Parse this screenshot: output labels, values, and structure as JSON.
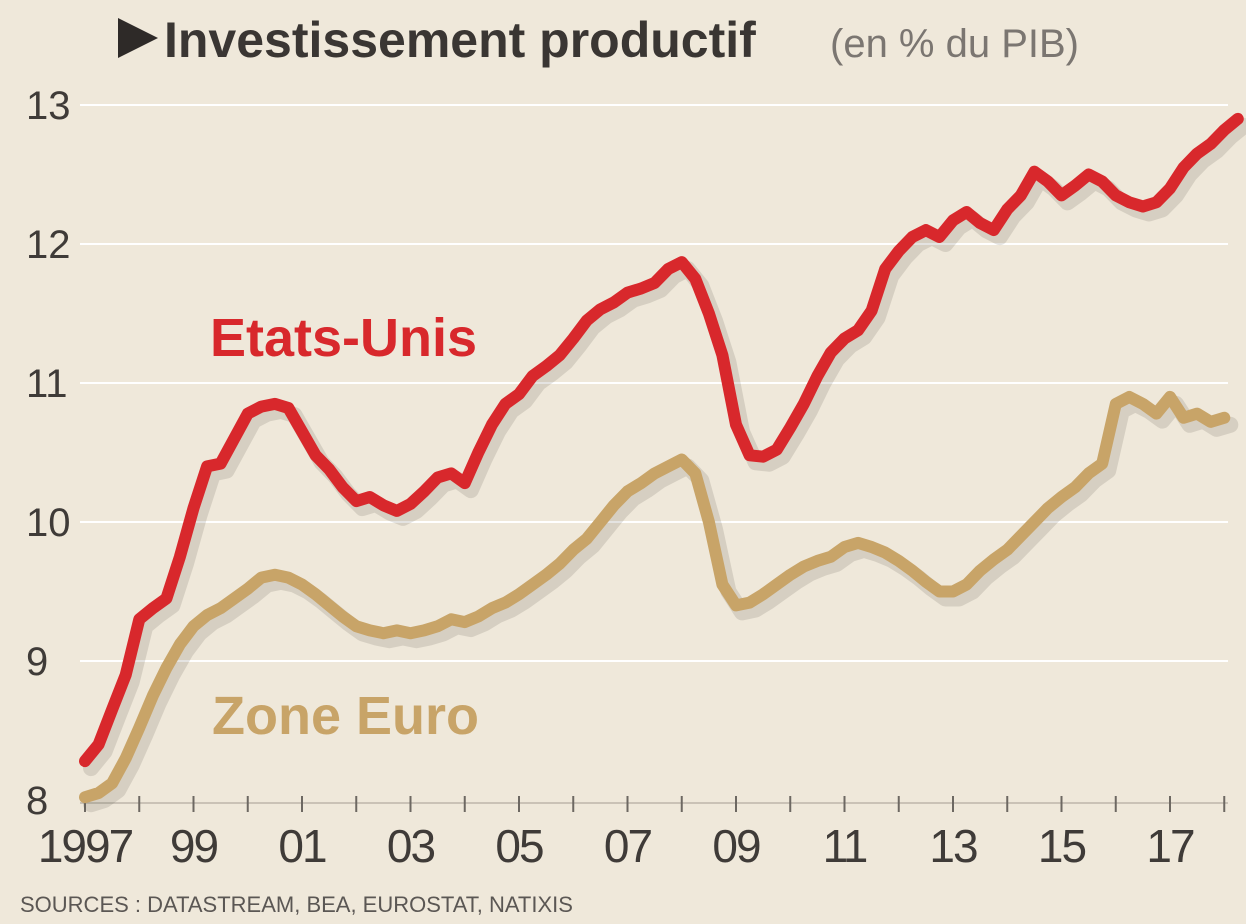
{
  "chart_data": {
    "type": "line",
    "title": "Investissement productif",
    "subtitle": "(en % du PIB)",
    "source": "SOURCES : DATASTREAM, BEA, EUROSTAT, NATIXIS",
    "xlim": [
      1997,
      2018.3
    ],
    "ylim": [
      8,
      13
    ],
    "yticks": [
      8,
      9,
      10,
      11,
      12,
      13
    ],
    "xticks": [
      {
        "value": 1997,
        "label": "1997"
      },
      {
        "value": 1999,
        "label": "99"
      },
      {
        "value": 2001,
        "label": "01"
      },
      {
        "value": 2003,
        "label": "03"
      },
      {
        "value": 2005,
        "label": "05"
      },
      {
        "value": 2007,
        "label": "07"
      },
      {
        "value": 2009,
        "label": "09"
      },
      {
        "value": 2011,
        "label": "11"
      },
      {
        "value": 2013,
        "label": "13"
      },
      {
        "value": 2015,
        "label": "15"
      },
      {
        "value": 2017,
        "label": "17"
      }
    ],
    "grid": true,
    "series": [
      {
        "name": "Etats-Unis",
        "color": "#d8282c",
        "points": [
          [
            1997.0,
            8.28
          ],
          [
            1997.25,
            8.4
          ],
          [
            1997.5,
            8.65
          ],
          [
            1997.75,
            8.9
          ],
          [
            1998.0,
            9.3
          ],
          [
            1998.25,
            9.38
          ],
          [
            1998.5,
            9.45
          ],
          [
            1998.75,
            9.75
          ],
          [
            1999.0,
            10.1
          ],
          [
            1999.25,
            10.4
          ],
          [
            1999.5,
            10.42
          ],
          [
            1999.75,
            10.6
          ],
          [
            2000.0,
            10.78
          ],
          [
            2000.25,
            10.83
          ],
          [
            2000.5,
            10.85
          ],
          [
            2000.75,
            10.82
          ],
          [
            2001.0,
            10.65
          ],
          [
            2001.25,
            10.48
          ],
          [
            2001.5,
            10.38
          ],
          [
            2001.75,
            10.25
          ],
          [
            2002.0,
            10.15
          ],
          [
            2002.25,
            10.18
          ],
          [
            2002.5,
            10.12
          ],
          [
            2002.75,
            10.08
          ],
          [
            2003.0,
            10.13
          ],
          [
            2003.25,
            10.22
          ],
          [
            2003.5,
            10.32
          ],
          [
            2003.75,
            10.35
          ],
          [
            2004.0,
            10.28
          ],
          [
            2004.25,
            10.5
          ],
          [
            2004.5,
            10.7
          ],
          [
            2004.75,
            10.85
          ],
          [
            2005.0,
            10.92
          ],
          [
            2005.25,
            11.05
          ],
          [
            2005.5,
            11.12
          ],
          [
            2005.75,
            11.2
          ],
          [
            2006.0,
            11.32
          ],
          [
            2006.25,
            11.45
          ],
          [
            2006.5,
            11.53
          ],
          [
            2006.75,
            11.58
          ],
          [
            2007.0,
            11.65
          ],
          [
            2007.25,
            11.68
          ],
          [
            2007.5,
            11.72
          ],
          [
            2007.75,
            11.82
          ],
          [
            2008.0,
            11.87
          ],
          [
            2008.25,
            11.75
          ],
          [
            2008.5,
            11.5
          ],
          [
            2008.75,
            11.2
          ],
          [
            2009.0,
            10.7
          ],
          [
            2009.25,
            10.48
          ],
          [
            2009.5,
            10.47
          ],
          [
            2009.75,
            10.52
          ],
          [
            2010.0,
            10.68
          ],
          [
            2010.25,
            10.85
          ],
          [
            2010.5,
            11.05
          ],
          [
            2010.75,
            11.22
          ],
          [
            2011.0,
            11.32
          ],
          [
            2011.25,
            11.38
          ],
          [
            2011.5,
            11.52
          ],
          [
            2011.75,
            11.82
          ],
          [
            2012.0,
            11.95
          ],
          [
            2012.25,
            12.05
          ],
          [
            2012.5,
            12.1
          ],
          [
            2012.75,
            12.05
          ],
          [
            2013.0,
            12.17
          ],
          [
            2013.25,
            12.23
          ],
          [
            2013.5,
            12.15
          ],
          [
            2013.75,
            12.1
          ],
          [
            2014.0,
            12.25
          ],
          [
            2014.25,
            12.35
          ],
          [
            2014.5,
            12.52
          ],
          [
            2014.75,
            12.45
          ],
          [
            2015.0,
            12.35
          ],
          [
            2015.25,
            12.42
          ],
          [
            2015.5,
            12.5
          ],
          [
            2015.75,
            12.45
          ],
          [
            2016.0,
            12.35
          ],
          [
            2016.25,
            12.3
          ],
          [
            2016.5,
            12.27
          ],
          [
            2016.75,
            12.3
          ],
          [
            2017.0,
            12.4
          ],
          [
            2017.25,
            12.55
          ],
          [
            2017.5,
            12.65
          ],
          [
            2017.75,
            12.72
          ],
          [
            2018.0,
            12.82
          ],
          [
            2018.25,
            12.9
          ]
        ]
      },
      {
        "name": "Zone Euro",
        "color": "#c8a468",
        "points": [
          [
            1997.0,
            8.02
          ],
          [
            1997.25,
            8.05
          ],
          [
            1997.5,
            8.12
          ],
          [
            1997.75,
            8.3
          ],
          [
            1998.0,
            8.52
          ],
          [
            1998.25,
            8.75
          ],
          [
            1998.5,
            8.95
          ],
          [
            1998.75,
            9.12
          ],
          [
            1999.0,
            9.25
          ],
          [
            1999.25,
            9.33
          ],
          [
            1999.5,
            9.38
          ],
          [
            1999.75,
            9.45
          ],
          [
            2000.0,
            9.52
          ],
          [
            2000.25,
            9.6
          ],
          [
            2000.5,
            9.62
          ],
          [
            2000.75,
            9.6
          ],
          [
            2001.0,
            9.55
          ],
          [
            2001.25,
            9.48
          ],
          [
            2001.5,
            9.4
          ],
          [
            2001.75,
            9.32
          ],
          [
            2002.0,
            9.25
          ],
          [
            2002.25,
            9.22
          ],
          [
            2002.5,
            9.2
          ],
          [
            2002.75,
            9.22
          ],
          [
            2003.0,
            9.2
          ],
          [
            2003.25,
            9.22
          ],
          [
            2003.5,
            9.25
          ],
          [
            2003.75,
            9.3
          ],
          [
            2004.0,
            9.28
          ],
          [
            2004.25,
            9.32
          ],
          [
            2004.5,
            9.38
          ],
          [
            2004.75,
            9.42
          ],
          [
            2005.0,
            9.48
          ],
          [
            2005.25,
            9.55
          ],
          [
            2005.5,
            9.62
          ],
          [
            2005.75,
            9.7
          ],
          [
            2006.0,
            9.8
          ],
          [
            2006.25,
            9.88
          ],
          [
            2006.5,
            10.0
          ],
          [
            2006.75,
            10.12
          ],
          [
            2007.0,
            10.22
          ],
          [
            2007.25,
            10.28
          ],
          [
            2007.5,
            10.35
          ],
          [
            2007.75,
            10.4
          ],
          [
            2008.0,
            10.45
          ],
          [
            2008.25,
            10.35
          ],
          [
            2008.5,
            10.0
          ],
          [
            2008.75,
            9.55
          ],
          [
            2009.0,
            9.4
          ],
          [
            2009.25,
            9.42
          ],
          [
            2009.5,
            9.48
          ],
          [
            2009.75,
            9.55
          ],
          [
            2010.0,
            9.62
          ],
          [
            2010.25,
            9.68
          ],
          [
            2010.5,
            9.72
          ],
          [
            2010.75,
            9.75
          ],
          [
            2011.0,
            9.82
          ],
          [
            2011.25,
            9.85
          ],
          [
            2011.5,
            9.82
          ],
          [
            2011.75,
            9.78
          ],
          [
            2012.0,
            9.72
          ],
          [
            2012.25,
            9.65
          ],
          [
            2012.5,
            9.57
          ],
          [
            2012.75,
            9.5
          ],
          [
            2013.0,
            9.5
          ],
          [
            2013.25,
            9.55
          ],
          [
            2013.5,
            9.65
          ],
          [
            2013.75,
            9.73
          ],
          [
            2014.0,
            9.8
          ],
          [
            2014.25,
            9.9
          ],
          [
            2014.5,
            10.0
          ],
          [
            2014.75,
            10.1
          ],
          [
            2015.0,
            10.18
          ],
          [
            2015.25,
            10.25
          ],
          [
            2015.5,
            10.35
          ],
          [
            2015.75,
            10.42
          ],
          [
            2016.0,
            10.85
          ],
          [
            2016.25,
            10.9
          ],
          [
            2016.5,
            10.85
          ],
          [
            2016.75,
            10.78
          ],
          [
            2017.0,
            10.9
          ],
          [
            2017.25,
            10.75
          ],
          [
            2017.5,
            10.78
          ],
          [
            2017.75,
            10.72
          ],
          [
            2018.0,
            10.75
          ]
        ]
      }
    ]
  }
}
